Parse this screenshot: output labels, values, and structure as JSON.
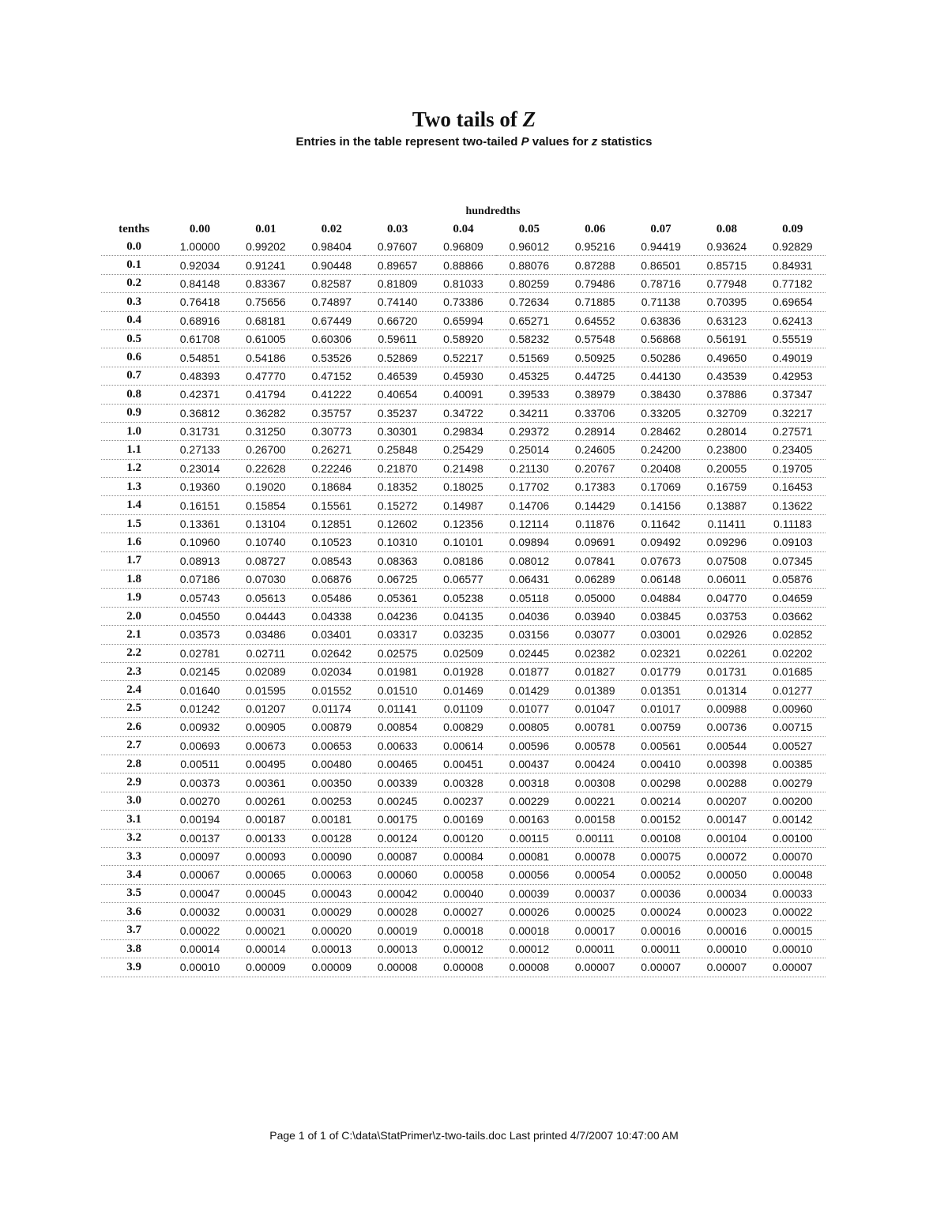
{
  "document": {
    "title_text": "Two tails of ",
    "title_var": "Z",
    "subtitle_pre": "Entries in the table represent two-tailed ",
    "subtitle_p": "P",
    "subtitle_mid": " values for ",
    "subtitle_z": "z",
    "subtitle_post": " statistics",
    "footer": "Page 1 of 1 of C:\\data\\StatPrimer\\z-two-tails.doc Last printed 4/7/2007 10:47:00 AM"
  },
  "table": {
    "group_header": "hundredths",
    "row_header_label": "tenths",
    "columns": [
      "0.00",
      "0.01",
      "0.02",
      "0.03",
      "0.04",
      "0.05",
      "0.06",
      "0.07",
      "0.08",
      "0.09"
    ],
    "rows": [
      {
        "z": "0.0",
        "v": [
          "1.00000",
          "0.99202",
          "0.98404",
          "0.97607",
          "0.96809",
          "0.96012",
          "0.95216",
          "0.94419",
          "0.93624",
          "0.92829"
        ]
      },
      {
        "z": "0.1",
        "v": [
          "0.92034",
          "0.91241",
          "0.90448",
          "0.89657",
          "0.88866",
          "0.88076",
          "0.87288",
          "0.86501",
          "0.85715",
          "0.84931"
        ]
      },
      {
        "z": "0.2",
        "v": [
          "0.84148",
          "0.83367",
          "0.82587",
          "0.81809",
          "0.81033",
          "0.80259",
          "0.79486",
          "0.78716",
          "0.77948",
          "0.77182"
        ]
      },
      {
        "z": "0.3",
        "v": [
          "0.76418",
          "0.75656",
          "0.74897",
          "0.74140",
          "0.73386",
          "0.72634",
          "0.71885",
          "0.71138",
          "0.70395",
          "0.69654"
        ]
      },
      {
        "z": "0.4",
        "v": [
          "0.68916",
          "0.68181",
          "0.67449",
          "0.66720",
          "0.65994",
          "0.65271",
          "0.64552",
          "0.63836",
          "0.63123",
          "0.62413"
        ]
      },
      {
        "z": "0.5",
        "v": [
          "0.61708",
          "0.61005",
          "0.60306",
          "0.59611",
          "0.58920",
          "0.58232",
          "0.57548",
          "0.56868",
          "0.56191",
          "0.55519"
        ]
      },
      {
        "z": "0.6",
        "v": [
          "0.54851",
          "0.54186",
          "0.53526",
          "0.52869",
          "0.52217",
          "0.51569",
          "0.50925",
          "0.50286",
          "0.49650",
          "0.49019"
        ]
      },
      {
        "z": "0.7",
        "v": [
          "0.48393",
          "0.47770",
          "0.47152",
          "0.46539",
          "0.45930",
          "0.45325",
          "0.44725",
          "0.44130",
          "0.43539",
          "0.42953"
        ]
      },
      {
        "z": "0.8",
        "v": [
          "0.42371",
          "0.41794",
          "0.41222",
          "0.40654",
          "0.40091",
          "0.39533",
          "0.38979",
          "0.38430",
          "0.37886",
          "0.37347"
        ]
      },
      {
        "z": "0.9",
        "v": [
          "0.36812",
          "0.36282",
          "0.35757",
          "0.35237",
          "0.34722",
          "0.34211",
          "0.33706",
          "0.33205",
          "0.32709",
          "0.32217"
        ]
      },
      {
        "z": "1.0",
        "v": [
          "0.31731",
          "0.31250",
          "0.30773",
          "0.30301",
          "0.29834",
          "0.29372",
          "0.28914",
          "0.28462",
          "0.28014",
          "0.27571"
        ]
      },
      {
        "z": "1.1",
        "v": [
          "0.27133",
          "0.26700",
          "0.26271",
          "0.25848",
          "0.25429",
          "0.25014",
          "0.24605",
          "0.24200",
          "0.23800",
          "0.23405"
        ]
      },
      {
        "z": "1.2",
        "v": [
          "0.23014",
          "0.22628",
          "0.22246",
          "0.21870",
          "0.21498",
          "0.21130",
          "0.20767",
          "0.20408",
          "0.20055",
          "0.19705"
        ]
      },
      {
        "z": "1.3",
        "v": [
          "0.19360",
          "0.19020",
          "0.18684",
          "0.18352",
          "0.18025",
          "0.17702",
          "0.17383",
          "0.17069",
          "0.16759",
          "0.16453"
        ]
      },
      {
        "z": "1.4",
        "v": [
          "0.16151",
          "0.15854",
          "0.15561",
          "0.15272",
          "0.14987",
          "0.14706",
          "0.14429",
          "0.14156",
          "0.13887",
          "0.13622"
        ]
      },
      {
        "z": "1.5",
        "v": [
          "0.13361",
          "0.13104",
          "0.12851",
          "0.12602",
          "0.12356",
          "0.12114",
          "0.11876",
          "0.11642",
          "0.11411",
          "0.11183"
        ]
      },
      {
        "z": "1.6",
        "v": [
          "0.10960",
          "0.10740",
          "0.10523",
          "0.10310",
          "0.10101",
          "0.09894",
          "0.09691",
          "0.09492",
          "0.09296",
          "0.09103"
        ]
      },
      {
        "z": "1.7",
        "v": [
          "0.08913",
          "0.08727",
          "0.08543",
          "0.08363",
          "0.08186",
          "0.08012",
          "0.07841",
          "0.07673",
          "0.07508",
          "0.07345"
        ]
      },
      {
        "z": "1.8",
        "v": [
          "0.07186",
          "0.07030",
          "0.06876",
          "0.06725",
          "0.06577",
          "0.06431",
          "0.06289",
          "0.06148",
          "0.06011",
          "0.05876"
        ]
      },
      {
        "z": "1.9",
        "v": [
          "0.05743",
          "0.05613",
          "0.05486",
          "0.05361",
          "0.05238",
          "0.05118",
          "0.05000",
          "0.04884",
          "0.04770",
          "0.04659"
        ]
      },
      {
        "z": "2.0",
        "v": [
          "0.04550",
          "0.04443",
          "0.04338",
          "0.04236",
          "0.04135",
          "0.04036",
          "0.03940",
          "0.03845",
          "0.03753",
          "0.03662"
        ]
      },
      {
        "z": "2.1",
        "v": [
          "0.03573",
          "0.03486",
          "0.03401",
          "0.03317",
          "0.03235",
          "0.03156",
          "0.03077",
          "0.03001",
          "0.02926",
          "0.02852"
        ]
      },
      {
        "z": "2.2",
        "v": [
          "0.02781",
          "0.02711",
          "0.02642",
          "0.02575",
          "0.02509",
          "0.02445",
          "0.02382",
          "0.02321",
          "0.02261",
          "0.02202"
        ]
      },
      {
        "z": "2.3",
        "v": [
          "0.02145",
          "0.02089",
          "0.02034",
          "0.01981",
          "0.01928",
          "0.01877",
          "0.01827",
          "0.01779",
          "0.01731",
          "0.01685"
        ]
      },
      {
        "z": "2.4",
        "v": [
          "0.01640",
          "0.01595",
          "0.01552",
          "0.01510",
          "0.01469",
          "0.01429",
          "0.01389",
          "0.01351",
          "0.01314",
          "0.01277"
        ]
      },
      {
        "z": "2.5",
        "v": [
          "0.01242",
          "0.01207",
          "0.01174",
          "0.01141",
          "0.01109",
          "0.01077",
          "0.01047",
          "0.01017",
          "0.00988",
          "0.00960"
        ]
      },
      {
        "z": "2.6",
        "v": [
          "0.00932",
          "0.00905",
          "0.00879",
          "0.00854",
          "0.00829",
          "0.00805",
          "0.00781",
          "0.00759",
          "0.00736",
          "0.00715"
        ]
      },
      {
        "z": "2.7",
        "v": [
          "0.00693",
          "0.00673",
          "0.00653",
          "0.00633",
          "0.00614",
          "0.00596",
          "0.00578",
          "0.00561",
          "0.00544",
          "0.00527"
        ]
      },
      {
        "z": "2.8",
        "v": [
          "0.00511",
          "0.00495",
          "0.00480",
          "0.00465",
          "0.00451",
          "0.00437",
          "0.00424",
          "0.00410",
          "0.00398",
          "0.00385"
        ]
      },
      {
        "z": "2.9",
        "v": [
          "0.00373",
          "0.00361",
          "0.00350",
          "0.00339",
          "0.00328",
          "0.00318",
          "0.00308",
          "0.00298",
          "0.00288",
          "0.00279"
        ]
      },
      {
        "z": "3.0",
        "v": [
          "0.00270",
          "0.00261",
          "0.00253",
          "0.00245",
          "0.00237",
          "0.00229",
          "0.00221",
          "0.00214",
          "0.00207",
          "0.00200"
        ]
      },
      {
        "z": "3.1",
        "v": [
          "0.00194",
          "0.00187",
          "0.00181",
          "0.00175",
          "0.00169",
          "0.00163",
          "0.00158",
          "0.00152",
          "0.00147",
          "0.00142"
        ]
      },
      {
        "z": "3.2",
        "v": [
          "0.00137",
          "0.00133",
          "0.00128",
          "0.00124",
          "0.00120",
          "0.00115",
          "0.00111",
          "0.00108",
          "0.00104",
          "0.00100"
        ]
      },
      {
        "z": "3.3",
        "v": [
          "0.00097",
          "0.00093",
          "0.00090",
          "0.00087",
          "0.00084",
          "0.00081",
          "0.00078",
          "0.00075",
          "0.00072",
          "0.00070"
        ]
      },
      {
        "z": "3.4",
        "v": [
          "0.00067",
          "0.00065",
          "0.00063",
          "0.00060",
          "0.00058",
          "0.00056",
          "0.00054",
          "0.00052",
          "0.00050",
          "0.00048"
        ]
      },
      {
        "z": "3.5",
        "v": [
          "0.00047",
          "0.00045",
          "0.00043",
          "0.00042",
          "0.00040",
          "0.00039",
          "0.00037",
          "0.00036",
          "0.00034",
          "0.00033"
        ]
      },
      {
        "z": "3.6",
        "v": [
          "0.00032",
          "0.00031",
          "0.00029",
          "0.00028",
          "0.00027",
          "0.00026",
          "0.00025",
          "0.00024",
          "0.00023",
          "0.00022"
        ]
      },
      {
        "z": "3.7",
        "v": [
          "0.00022",
          "0.00021",
          "0.00020",
          "0.00019",
          "0.00018",
          "0.00018",
          "0.00017",
          "0.00016",
          "0.00016",
          "0.00015"
        ]
      },
      {
        "z": "3.8",
        "v": [
          "0.00014",
          "0.00014",
          "0.00013",
          "0.00013",
          "0.00012",
          "0.00012",
          "0.00011",
          "0.00011",
          "0.00010",
          "0.00010"
        ]
      },
      {
        "z": "3.9",
        "v": [
          "0.00010",
          "0.00009",
          "0.00009",
          "0.00008",
          "0.00008",
          "0.00008",
          "0.00007",
          "0.00007",
          "0.00007",
          "0.00007"
        ]
      }
    ]
  }
}
